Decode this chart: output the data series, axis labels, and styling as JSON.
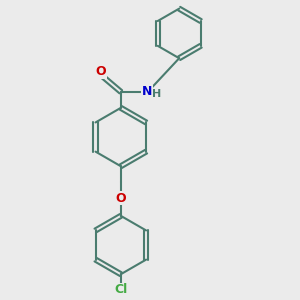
{
  "background_color": "#ebebeb",
  "bond_color": "#4a7c6f",
  "atom_colors": {
    "O": "#cc0000",
    "N": "#0000cc",
    "Cl": "#44aa44",
    "H_color": "#4a7c6f"
  },
  "line_width": 1.5,
  "figsize": [
    3.0,
    3.0
  ],
  "dpi": 100,
  "font_size": 8.5
}
